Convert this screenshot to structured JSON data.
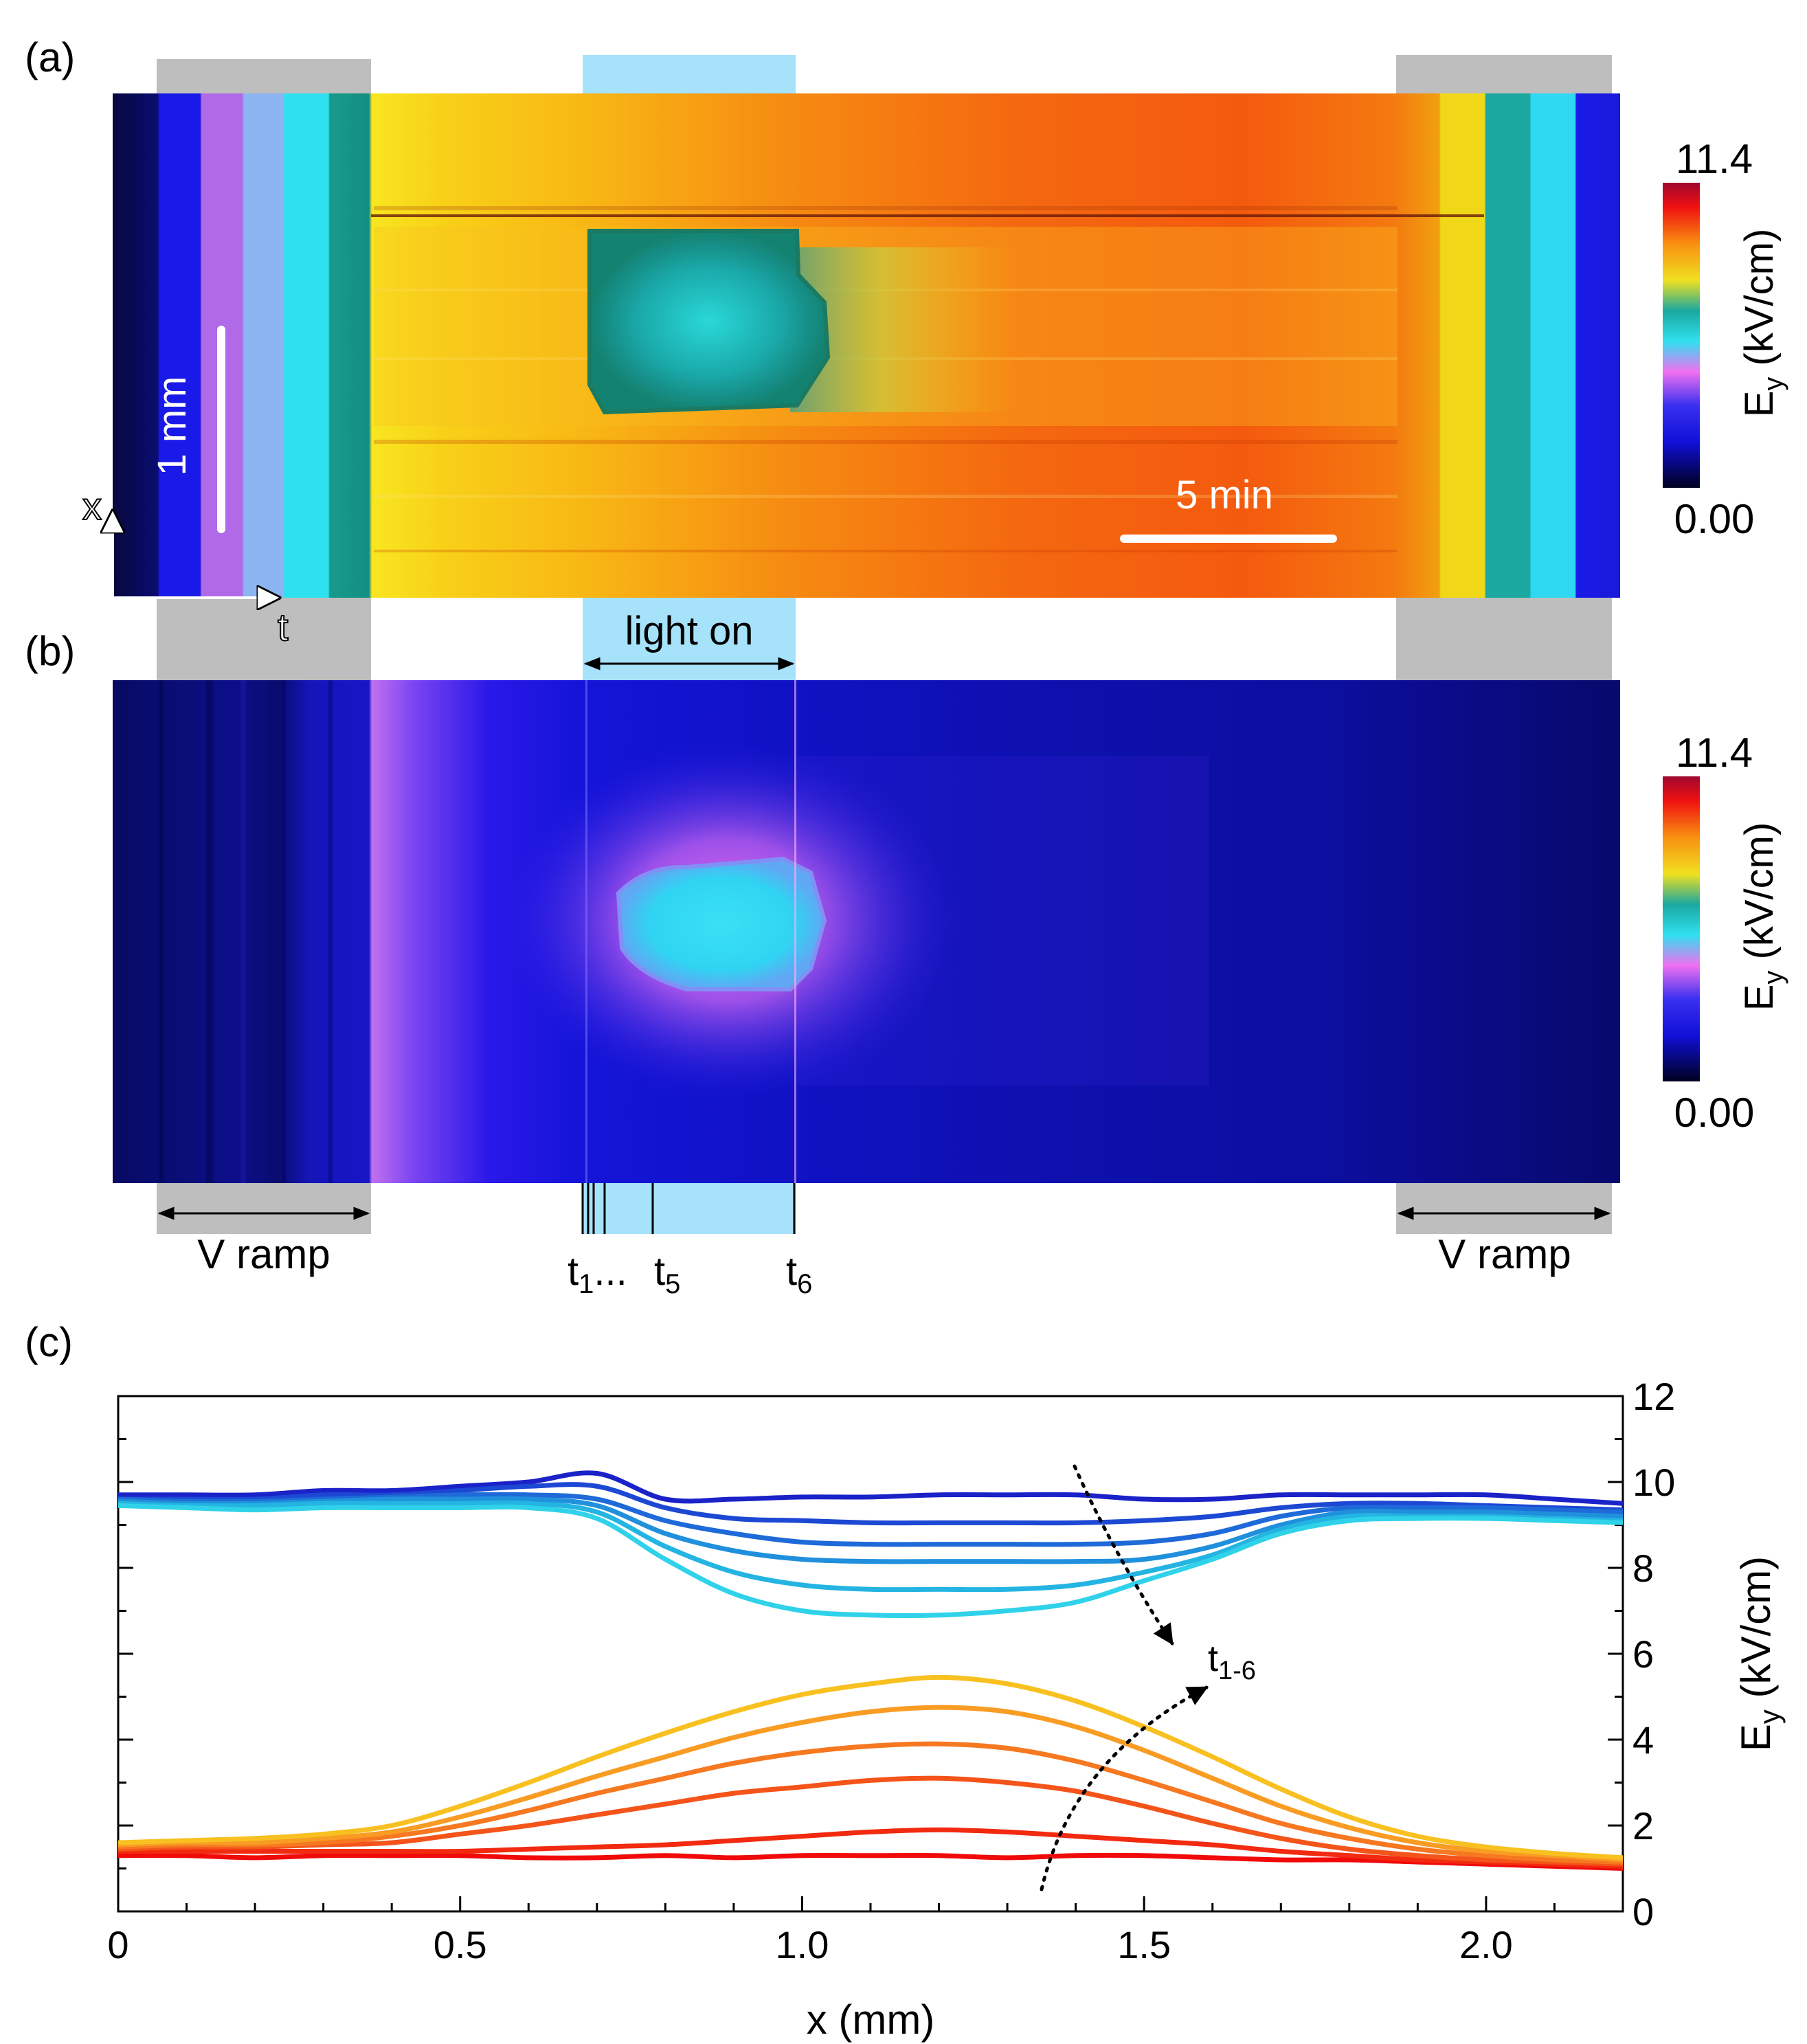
{
  "panels": {
    "a_label": "(a)",
    "b_label": "(b)",
    "c_label": "(c)"
  },
  "heatmap_a": {
    "colorbar": {
      "max": "11.4",
      "min": "0.00",
      "label": "E",
      "label_sub": "y",
      "unit": " (kV/cm)"
    },
    "scale_x": "5 min",
    "scale_y": "1 mm",
    "axis_x": "x",
    "axis_t": "t"
  },
  "heatmap_b": {
    "colorbar": {
      "max": "11.4",
      "min": "0.00",
      "label": "E",
      "label_sub": "y",
      "unit": " (kV/cm)"
    }
  },
  "annotations": {
    "light_on": "light on",
    "v_ramp_left": "V ramp",
    "v_ramp_right": "V ramp",
    "t1": "t",
    "t1_sub": "1",
    "t_dots": "...",
    "t5": "t",
    "t5_sub": "5",
    "t6": "t",
    "t6_sub": "6"
  },
  "colors": {
    "light_band": "#a6e2fa",
    "ramp_band": "#bebebe"
  },
  "chart_data": {
    "type": "line",
    "xlabel": "x (mm)",
    "ylabel": "E",
    "ylabel_sub": "y",
    "ylabel_unit": " (kV/cm)",
    "xlim": [
      0,
      2.2
    ],
    "ylim": [
      0,
      12
    ],
    "xticks": [
      "0",
      "0.5",
      "1.0",
      "1.5",
      "2.0"
    ],
    "xtick_values": [
      0,
      0.5,
      1.0,
      1.5,
      2.0
    ],
    "yticks": [
      "0",
      "2",
      "4",
      "6",
      "8",
      "10",
      "12"
    ],
    "ytick_values": [
      0,
      2,
      4,
      6,
      8,
      10,
      12
    ],
    "annotation": "t",
    "annotation_sub": "1-6",
    "x": [
      0,
      0.1,
      0.2,
      0.3,
      0.4,
      0.5,
      0.6,
      0.7,
      0.8,
      0.9,
      1.0,
      1.1,
      1.2,
      1.3,
      1.4,
      1.5,
      1.6,
      1.7,
      1.8,
      1.9,
      2.0,
      2.1,
      2.2
    ],
    "series": [
      {
        "group": "dark",
        "color": "#1a22c8",
        "values": [
          9.7,
          9.7,
          9.7,
          9.8,
          9.8,
          9.9,
          10.0,
          10.2,
          9.6,
          9.6,
          9.65,
          9.65,
          9.7,
          9.7,
          9.7,
          9.6,
          9.6,
          9.7,
          9.7,
          9.7,
          9.7,
          9.6,
          9.5
        ]
      },
      {
        "group": "dark",
        "color": "#1c48d4",
        "values": [
          9.6,
          9.6,
          9.6,
          9.7,
          9.7,
          9.8,
          9.9,
          9.9,
          9.4,
          9.15,
          9.1,
          9.05,
          9.05,
          9.05,
          9.05,
          9.1,
          9.2,
          9.4,
          9.5,
          9.5,
          9.45,
          9.4,
          9.35
        ]
      },
      {
        "group": "dark",
        "color": "#1e6ad8",
        "values": [
          9.6,
          9.55,
          9.55,
          9.6,
          9.65,
          9.7,
          9.7,
          9.6,
          9.1,
          8.8,
          8.6,
          8.55,
          8.55,
          8.55,
          8.55,
          8.6,
          8.8,
          9.2,
          9.4,
          9.4,
          9.4,
          9.35,
          9.3
        ]
      },
      {
        "group": "dark",
        "color": "#2090dc",
        "values": [
          9.55,
          9.5,
          9.5,
          9.55,
          9.6,
          9.6,
          9.6,
          9.45,
          8.8,
          8.4,
          8.2,
          8.15,
          8.15,
          8.15,
          8.15,
          8.2,
          8.5,
          9.0,
          9.3,
          9.3,
          9.3,
          9.25,
          9.2
        ]
      },
      {
        "group": "dark",
        "color": "#24b4e2",
        "values": [
          9.5,
          9.45,
          9.45,
          9.5,
          9.5,
          9.5,
          9.5,
          9.3,
          8.5,
          7.9,
          7.6,
          7.5,
          7.5,
          7.5,
          7.6,
          7.9,
          8.3,
          8.9,
          9.2,
          9.2,
          9.2,
          9.15,
          9.1
        ]
      },
      {
        "group": "dark",
        "color": "#30d2ea",
        "values": [
          9.45,
          9.4,
          9.35,
          9.4,
          9.4,
          9.4,
          9.4,
          9.15,
          8.2,
          7.4,
          7.0,
          6.9,
          6.9,
          7.0,
          7.2,
          7.7,
          8.2,
          8.8,
          9.1,
          9.15,
          9.15,
          9.1,
          9.05
        ]
      },
      {
        "group": "light",
        "color": "#f00a0a",
        "values": [
          1.3,
          1.3,
          1.25,
          1.3,
          1.3,
          1.3,
          1.25,
          1.25,
          1.3,
          1.25,
          1.3,
          1.3,
          1.3,
          1.25,
          1.3,
          1.3,
          1.25,
          1.2,
          1.2,
          1.15,
          1.1,
          1.05,
          1.0
        ]
      },
      {
        "group": "light",
        "color": "#f22a10",
        "values": [
          1.4,
          1.4,
          1.4,
          1.4,
          1.4,
          1.4,
          1.45,
          1.5,
          1.55,
          1.65,
          1.75,
          1.85,
          1.9,
          1.85,
          1.75,
          1.65,
          1.55,
          1.4,
          1.3,
          1.2,
          1.15,
          1.1,
          1.05
        ]
      },
      {
        "group": "light",
        "color": "#f4541a",
        "values": [
          1.45,
          1.5,
          1.5,
          1.55,
          1.6,
          1.8,
          2.0,
          2.25,
          2.5,
          2.75,
          2.9,
          3.05,
          3.1,
          3.0,
          2.8,
          2.45,
          2.05,
          1.7,
          1.45,
          1.3,
          1.2,
          1.15,
          1.1
        ]
      },
      {
        "group": "light",
        "color": "#f67820",
        "values": [
          1.5,
          1.55,
          1.55,
          1.6,
          1.75,
          2.0,
          2.35,
          2.75,
          3.1,
          3.45,
          3.7,
          3.85,
          3.9,
          3.8,
          3.5,
          3.05,
          2.55,
          2.05,
          1.7,
          1.45,
          1.3,
          1.2,
          1.15
        ]
      },
      {
        "group": "light",
        "color": "#f89c24",
        "values": [
          1.55,
          1.6,
          1.6,
          1.7,
          1.85,
          2.2,
          2.65,
          3.15,
          3.6,
          4.05,
          4.4,
          4.65,
          4.75,
          4.65,
          4.3,
          3.75,
          3.1,
          2.45,
          1.95,
          1.6,
          1.4,
          1.3,
          1.2
        ]
      },
      {
        "group": "light",
        "color": "#f8c020",
        "values": [
          1.6,
          1.65,
          1.7,
          1.8,
          2.0,
          2.45,
          3.0,
          3.6,
          4.15,
          4.65,
          5.05,
          5.3,
          5.45,
          5.3,
          4.9,
          4.3,
          3.6,
          2.85,
          2.2,
          1.75,
          1.5,
          1.35,
          1.25
        ]
      }
    ]
  }
}
